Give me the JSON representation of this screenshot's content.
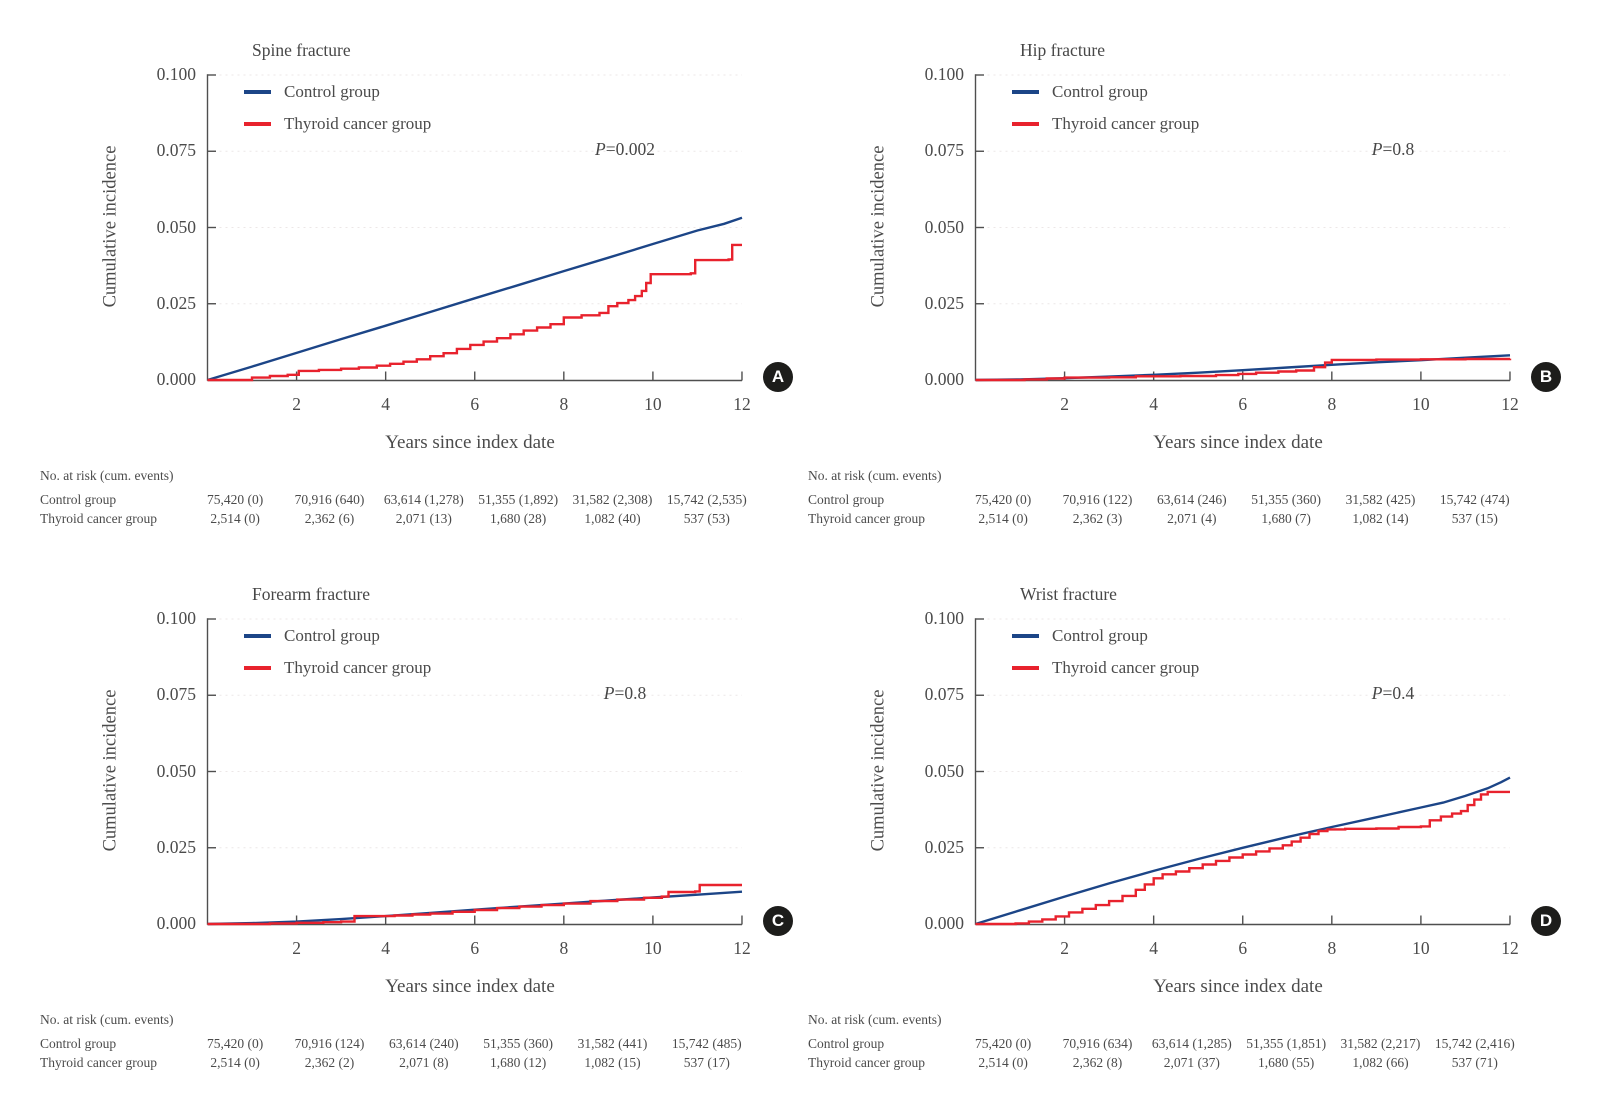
{
  "figure": {
    "y_axis_label": "Cumulative incidence",
    "x_axis_label": "Years since index date",
    "risk_header": "No. at risk (cum. events)",
    "legend": {
      "control": "Control group",
      "thyroid": "Thyroid cancer group"
    },
    "colors": {
      "control": "#1c4587",
      "thyroid": "#e8222d",
      "axis": "#4f4f4f",
      "grid": "#ece7e7",
      "badge": "#1d1d1b"
    }
  },
  "panels": [
    {
      "badge": "A",
      "risk": {
        "control": [
          "75,420 (0)",
          "70,916 (640)",
          "63,614 (1,278)",
          "51,355 (1,892)",
          "31,582 (2,308)",
          "15,742 (2,535)"
        ],
        "thyroid": [
          "2,514 (0)",
          "2,362 (6)",
          "2,071 (13)",
          "1,680 (28)",
          "1,082 (40)",
          "537 (53)"
        ]
      }
    },
    {
      "badge": "B",
      "risk": {
        "control": [
          "75,420 (0)",
          "70,916 (122)",
          "63,614 (246)",
          "51,355 (360)",
          "31,582 (425)",
          "15,742 (474)"
        ],
        "thyroid": [
          "2,514 (0)",
          "2,362 (3)",
          "2,071 (4)",
          "1,680 (7)",
          "1,082 (14)",
          "537 (15)"
        ]
      }
    },
    {
      "badge": "C",
      "risk": {
        "control": [
          "75,420 (0)",
          "70,916 (124)",
          "63,614 (240)",
          "51,355 (360)",
          "31,582 (441)",
          "15,742 (485)"
        ],
        "thyroid": [
          "2,514 (0)",
          "2,362 (2)",
          "2,071 (8)",
          "1,680 (12)",
          "1,082 (15)",
          "537 (17)"
        ]
      }
    },
    {
      "badge": "D",
      "risk": {
        "control": [
          "75,420 (0)",
          "70,916 (634)",
          "63,614 (1,285)",
          "51,355 (1,851)",
          "31,582 (2,217)",
          "15,742 (2,416)"
        ],
        "thyroid": [
          "2,514 (0)",
          "2,362 (8)",
          "2,071 (37)",
          "1,680 (55)",
          "1,082 (66)",
          "537 (71)"
        ]
      }
    }
  ],
  "chart_data": [
    {
      "type": "line",
      "title": "Spine fracture",
      "p_label": "P",
      "p_value": "=0.002",
      "xlabel": "Years since index date",
      "ylabel": "Cumulative incidence",
      "xlim": [
        0,
        12
      ],
      "ylim": [
        0,
        0.1
      ],
      "x_ticks": [
        2,
        4,
        6,
        8,
        10,
        12
      ],
      "y_ticks": [
        0,
        0.025,
        0.05,
        0.075,
        0.1
      ],
      "y_tick_labels": [
        "0.000",
        "0.025",
        "0.050",
        "0.075",
        "0.100"
      ],
      "series": [
        {
          "name": "Control group",
          "step": false,
          "points": [
            [
              0,
              0
            ],
            [
              1,
              0.0044
            ],
            [
              2,
              0.0089
            ],
            [
              3,
              0.0134
            ],
            [
              4,
              0.0178
            ],
            [
              5,
              0.0223
            ],
            [
              6,
              0.0268
            ],
            [
              7,
              0.0312
            ],
            [
              8,
              0.0357
            ],
            [
              9,
              0.0401
            ],
            [
              10,
              0.0446
            ],
            [
              11,
              0.049
            ],
            [
              11.6,
              0.0512
            ],
            [
              12,
              0.0532
            ]
          ]
        },
        {
          "name": "Thyroid cancer group",
          "step": true,
          "points": [
            [
              0,
              0
            ],
            [
              0.95,
              0
            ],
            [
              1.0,
              0.0008
            ],
            [
              1.4,
              0.0013
            ],
            [
              1.8,
              0.0017
            ],
            [
              2.05,
              0.003
            ],
            [
              2.5,
              0.0033
            ],
            [
              3.0,
              0.0037
            ],
            [
              3.4,
              0.0041
            ],
            [
              3.8,
              0.0047
            ],
            [
              4.1,
              0.0053
            ],
            [
              4.4,
              0.006
            ],
            [
              4.7,
              0.0068
            ],
            [
              5.0,
              0.0078
            ],
            [
              5.3,
              0.0088
            ],
            [
              5.6,
              0.0102
            ],
            [
              5.9,
              0.0115
            ],
            [
              6.2,
              0.0126
            ],
            [
              6.5,
              0.0137
            ],
            [
              6.8,
              0.015
            ],
            [
              7.1,
              0.0162
            ],
            [
              7.4,
              0.0172
            ],
            [
              7.7,
              0.0183
            ],
            [
              8.0,
              0.0205
            ],
            [
              8.4,
              0.0212
            ],
            [
              8.8,
              0.022
            ],
            [
              9.0,
              0.0242
            ],
            [
              9.2,
              0.0252
            ],
            [
              9.45,
              0.0262
            ],
            [
              9.6,
              0.0275
            ],
            [
              9.75,
              0.0292
            ],
            [
              9.85,
              0.0318
            ],
            [
              9.95,
              0.0347
            ],
            [
              10.85,
              0.035
            ],
            [
              10.95,
              0.0393
            ],
            [
              11.7,
              0.0395
            ],
            [
              11.78,
              0.0443
            ],
            [
              12,
              0.0443
            ]
          ]
        }
      ]
    },
    {
      "type": "line",
      "title": "Hip fracture",
      "p_label": "P",
      "p_value": "=0.8",
      "xlabel": "Years since index date",
      "ylabel": "Cumulative incidence",
      "xlim": [
        0,
        12
      ],
      "ylim": [
        0,
        0.1
      ],
      "x_ticks": [
        2,
        4,
        6,
        8,
        10,
        12
      ],
      "y_ticks": [
        0,
        0.025,
        0.05,
        0.075,
        0.1
      ],
      "y_tick_labels": [
        "0.000",
        "0.025",
        "0.050",
        "0.075",
        "0.100"
      ],
      "series": [
        {
          "name": "Control group",
          "step": false,
          "points": [
            [
              0,
              0
            ],
            [
              1,
              0.0002
            ],
            [
              2,
              0.0006
            ],
            [
              3,
              0.0011
            ],
            [
              4,
              0.0017
            ],
            [
              5,
              0.0024
            ],
            [
              6,
              0.0032
            ],
            [
              7,
              0.0041
            ],
            [
              8,
              0.005
            ],
            [
              9,
              0.0058
            ],
            [
              10,
              0.0065
            ],
            [
              11,
              0.0073
            ],
            [
              12,
              0.0081
            ]
          ]
        },
        {
          "name": "Thyroid cancer group",
          "step": true,
          "points": [
            [
              0,
              0
            ],
            [
              1.1,
              0.0002
            ],
            [
              1.6,
              0.0005
            ],
            [
              2.0,
              0.0008
            ],
            [
              3.0,
              0.0009
            ],
            [
              3.6,
              0.0012
            ],
            [
              4.6,
              0.0013
            ],
            [
              5.4,
              0.0016
            ],
            [
              5.9,
              0.002
            ],
            [
              6.3,
              0.0024
            ],
            [
              6.8,
              0.0028
            ],
            [
              7.2,
              0.0031
            ],
            [
              7.6,
              0.0042
            ],
            [
              7.85,
              0.0057
            ],
            [
              8.0,
              0.0066
            ],
            [
              9.0,
              0.0067
            ],
            [
              10.0,
              0.0068
            ],
            [
              11.0,
              0.0069
            ],
            [
              12,
              0.007
            ]
          ]
        }
      ]
    },
    {
      "type": "line",
      "title": "Forearm fracture",
      "p_label": "P",
      "p_value": "=0.8",
      "xlabel": "Years since index date",
      "ylabel": "Cumulative incidence",
      "xlim": [
        0,
        12
      ],
      "ylim": [
        0,
        0.1
      ],
      "x_ticks": [
        2,
        4,
        6,
        8,
        10,
        12
      ],
      "y_ticks": [
        0,
        0.025,
        0.05,
        0.075,
        0.1
      ],
      "y_tick_labels": [
        "0.000",
        "0.025",
        "0.050",
        "0.075",
        "0.100"
      ],
      "series": [
        {
          "name": "Control group",
          "step": false,
          "points": [
            [
              0,
              0
            ],
            [
              1,
              0.0003
            ],
            [
              2,
              0.0008
            ],
            [
              3,
              0.0016
            ],
            [
              4,
              0.0026
            ],
            [
              5,
              0.0036
            ],
            [
              6,
              0.0047
            ],
            [
              7,
              0.0057
            ],
            [
              8,
              0.0067
            ],
            [
              9,
              0.0077
            ],
            [
              10,
              0.0087
            ],
            [
              11,
              0.0096
            ],
            [
              12,
              0.0106
            ]
          ]
        },
        {
          "name": "Thyroid cancer group",
          "step": true,
          "points": [
            [
              0,
              0
            ],
            [
              1.4,
              0.0002
            ],
            [
              2.0,
              0.0004
            ],
            [
              2.6,
              0.0006
            ],
            [
              3.0,
              0.0008
            ],
            [
              3.3,
              0.0026
            ],
            [
              4.2,
              0.0028
            ],
            [
              4.6,
              0.0031
            ],
            [
              5.0,
              0.0034
            ],
            [
              5.5,
              0.004
            ],
            [
              6.0,
              0.0046
            ],
            [
              6.5,
              0.0052
            ],
            [
              7.0,
              0.0057
            ],
            [
              7.5,
              0.0062
            ],
            [
              8.0,
              0.0067
            ],
            [
              8.6,
              0.0075
            ],
            [
              9.2,
              0.008
            ],
            [
              9.8,
              0.0086
            ],
            [
              10.2,
              0.009
            ],
            [
              10.35,
              0.0105
            ],
            [
              10.95,
              0.0107
            ],
            [
              11.05,
              0.0128
            ],
            [
              12,
              0.0128
            ]
          ]
        }
      ]
    },
    {
      "type": "line",
      "title": "Wrist fracture",
      "p_label": "P",
      "p_value": "=0.4",
      "xlabel": "Years since index date",
      "ylabel": "Cumulative incidence",
      "xlim": [
        0,
        12
      ],
      "ylim": [
        0,
        0.1
      ],
      "x_ticks": [
        2,
        4,
        6,
        8,
        10,
        12
      ],
      "y_ticks": [
        0,
        0.025,
        0.05,
        0.075,
        0.1
      ],
      "y_tick_labels": [
        "0.000",
        "0.025",
        "0.050",
        "0.075",
        "0.100"
      ],
      "series": [
        {
          "name": "Control group",
          "step": false,
          "points": [
            [
              0,
              0
            ],
            [
              1,
              0.0045
            ],
            [
              2,
              0.009
            ],
            [
              3,
              0.0133
            ],
            [
              4,
              0.0174
            ],
            [
              5,
              0.0213
            ],
            [
              6,
              0.025
            ],
            [
              7,
              0.0285
            ],
            [
              8,
              0.0318
            ],
            [
              9,
              0.035
            ],
            [
              10,
              0.0382
            ],
            [
              10.5,
              0.0398
            ],
            [
              11,
              0.042
            ],
            [
              11.5,
              0.0445
            ],
            [
              11.8,
              0.0465
            ],
            [
              12,
              0.048
            ]
          ]
        },
        {
          "name": "Thyroid cancer group",
          "step": true,
          "points": [
            [
              0,
              0
            ],
            [
              0.9,
              0.0002
            ],
            [
              1.2,
              0.0008
            ],
            [
              1.5,
              0.0015
            ],
            [
              1.8,
              0.0025
            ],
            [
              2.1,
              0.0038
            ],
            [
              2.4,
              0.005
            ],
            [
              2.7,
              0.0062
            ],
            [
              3.0,
              0.0075
            ],
            [
              3.3,
              0.0092
            ],
            [
              3.6,
              0.0112
            ],
            [
              3.8,
              0.013
            ],
            [
              4.0,
              0.015
            ],
            [
              4.2,
              0.0163
            ],
            [
              4.5,
              0.0172
            ],
            [
              4.8,
              0.0183
            ],
            [
              5.1,
              0.0195
            ],
            [
              5.4,
              0.0207
            ],
            [
              5.7,
              0.0218
            ],
            [
              6.0,
              0.0228
            ],
            [
              6.3,
              0.0238
            ],
            [
              6.6,
              0.0248
            ],
            [
              6.9,
              0.0258
            ],
            [
              7.1,
              0.027
            ],
            [
              7.3,
              0.0283
            ],
            [
              7.5,
              0.0295
            ],
            [
              7.7,
              0.0305
            ],
            [
              7.9,
              0.031
            ],
            [
              8.3,
              0.0312
            ],
            [
              9.0,
              0.0313
            ],
            [
              9.5,
              0.0318
            ],
            [
              10.0,
              0.032
            ],
            [
              10.2,
              0.034
            ],
            [
              10.45,
              0.0352
            ],
            [
              10.7,
              0.0362
            ],
            [
              10.9,
              0.037
            ],
            [
              11.05,
              0.039
            ],
            [
              11.2,
              0.0408
            ],
            [
              11.35,
              0.0425
            ],
            [
              11.5,
              0.0433
            ],
            [
              12,
              0.0433
            ]
          ]
        }
      ]
    }
  ]
}
